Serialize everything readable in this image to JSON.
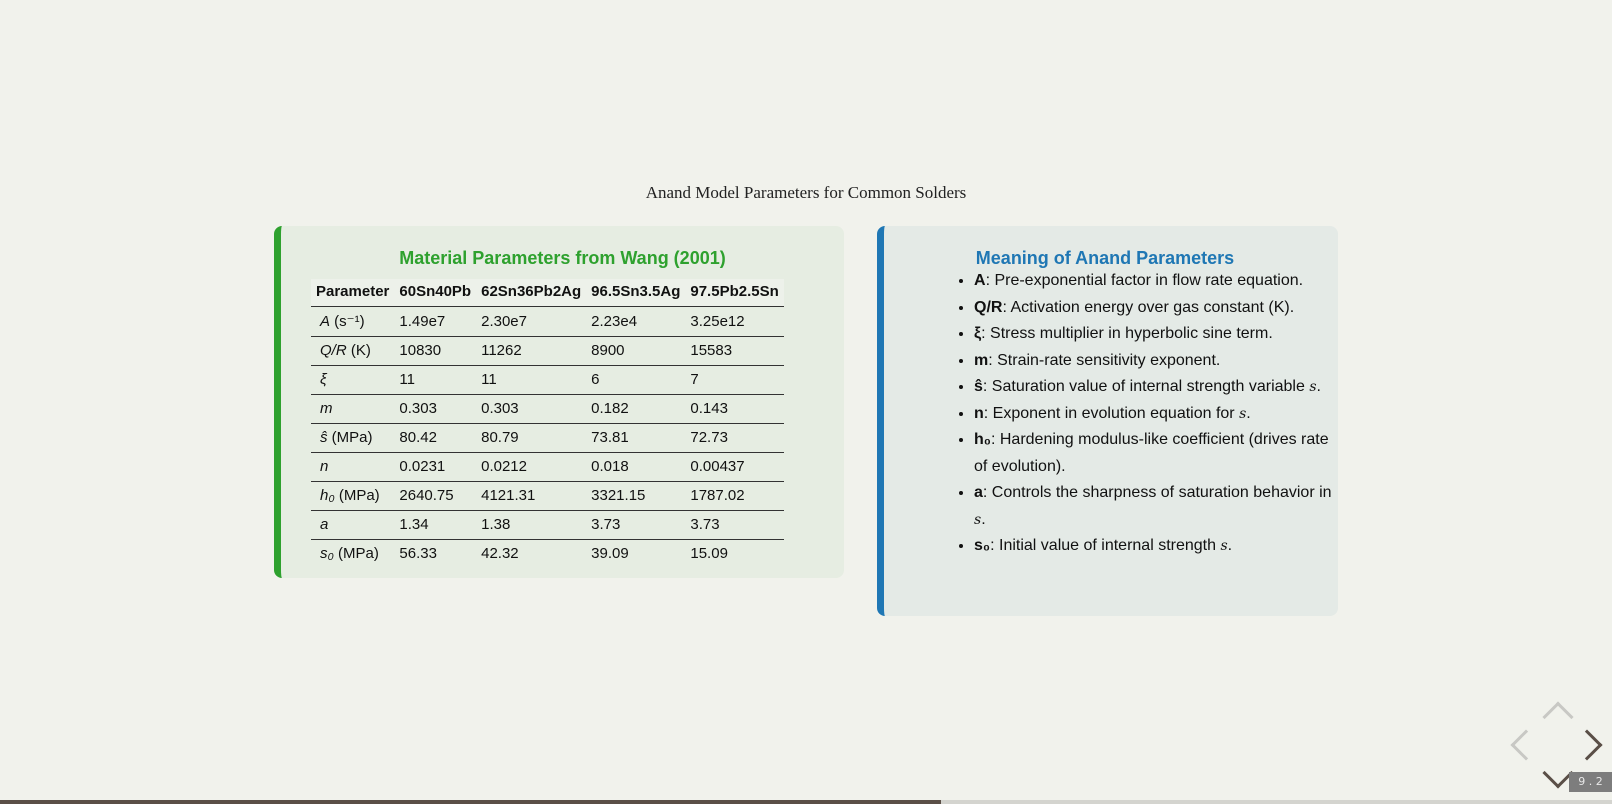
{
  "slide": {
    "title": "Anand Model Parameters for Common Solders",
    "slide_number": "9 . 2",
    "progress": 0.584
  },
  "left_card": {
    "heading": "Material Parameters from Wang (2001)",
    "table": {
      "headers": [
        "Parameter",
        "60Sn40Pb",
        "62Sn36Pb2Ag",
        "96.5Sn3.5Ag",
        "97.5Pb2.5Sn"
      ],
      "rows": [
        {
          "sym": "A",
          "unit": " (s⁻¹)",
          "values": [
            "1.49e7",
            "2.30e7",
            "2.23e4",
            "3.25e12"
          ]
        },
        {
          "sym": "Q/R",
          "unit": " (K)",
          "values": [
            "10830",
            "11262",
            "8900",
            "15583"
          ]
        },
        {
          "sym": "ξ",
          "unit": "",
          "values": [
            "11",
            "11",
            "6",
            "7"
          ]
        },
        {
          "sym": "m",
          "unit": "",
          "values": [
            "0.303",
            "0.303",
            "0.182",
            "0.143"
          ]
        },
        {
          "sym": "ŝ",
          "unit": " (MPa)",
          "values": [
            "80.42",
            "80.79",
            "73.81",
            "72.73"
          ]
        },
        {
          "sym": "n",
          "unit": "",
          "values": [
            "0.0231",
            "0.0212",
            "0.018",
            "0.00437"
          ]
        },
        {
          "sym": "h₀",
          "unit": " (MPa)",
          "values": [
            "2640.75",
            "4121.31",
            "3321.15",
            "1787.02"
          ]
        },
        {
          "sym": "a",
          "unit": "",
          "values": [
            "1.34",
            "1.38",
            "3.73",
            "3.73"
          ]
        },
        {
          "sym": "s₀",
          "unit": " (MPa)",
          "values": [
            "56.33",
            "42.32",
            "39.09",
            "15.09"
          ]
        }
      ]
    }
  },
  "right_card": {
    "heading": "Meaning of Anand Parameters",
    "items": [
      {
        "term": "A",
        "desc": ": Pre-exponential factor in flow rate equation.",
        "var": "",
        "tail": ""
      },
      {
        "term": "Q/R",
        "desc": ": Activation energy over gas constant (K).",
        "var": "",
        "tail": ""
      },
      {
        "term": "ξ",
        "desc": ": Stress multiplier in hyperbolic sine term.",
        "var": "",
        "tail": ""
      },
      {
        "term": "m",
        "desc": ": Strain-rate sensitivity exponent.",
        "var": "",
        "tail": ""
      },
      {
        "term": "ŝ",
        "desc": ": Saturation value of internal strength variable ",
        "var": "s",
        "tail": "."
      },
      {
        "term": "n",
        "desc": ": Exponent in evolution equation for ",
        "var": "s",
        "tail": "."
      },
      {
        "term": "h₀",
        "desc": ": Hardening modulus-like coefficient (drives rate of evolution).",
        "var": "",
        "tail": ""
      },
      {
        "term": "a",
        "desc": ": Controls the sharpness of saturation behavior in ",
        "var": "s",
        "tail": "."
      },
      {
        "term": "s₀",
        "desc": ": Initial value of internal strength ",
        "var": "s",
        "tail": "."
      }
    ]
  },
  "nav": {
    "up_icon": "chevron-up-icon",
    "left_icon": "chevron-left-icon",
    "right_icon": "chevron-right-icon",
    "down_icon": "chevron-down-icon"
  }
}
